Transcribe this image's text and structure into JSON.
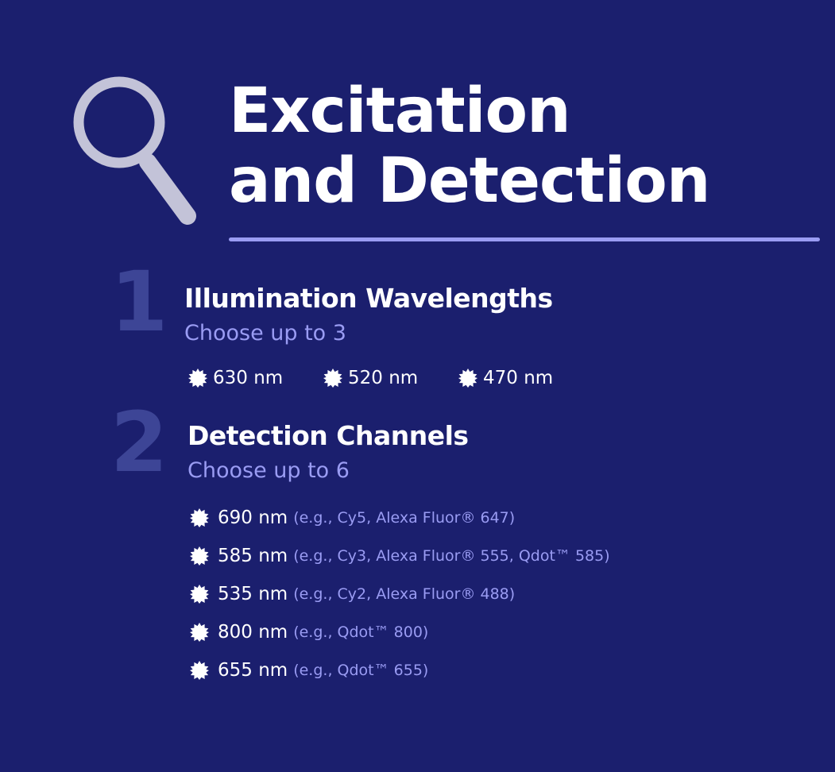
{
  "colors": {
    "background": "#1b1f6e",
    "accent": "#9a9cf3",
    "step_number": "#3d4596",
    "text": "#ffffff",
    "magnifier": "#c3c3d8"
  },
  "header": {
    "icon": "magnifying-glass-icon",
    "title_line1": "Excitation",
    "title_line2": "and Detection"
  },
  "illumination": {
    "number": "1",
    "title": "Illumination Wavelengths",
    "subtitle": "Choose up to 3",
    "icon": "sun-icon",
    "items": [
      "630 nm",
      "520 nm",
      "470 nm"
    ]
  },
  "detection": {
    "number": "2",
    "title": "Detection Channels",
    "subtitle": "Choose up to 6",
    "icon": "sun-icon",
    "channels": [
      {
        "wavelength": "690 nm",
        "examples": "(e.g., Cy5, Alexa Fluor® 647)"
      },
      {
        "wavelength": "585 nm",
        "examples": "(e.g., Cy3, Alexa Fluor® 555, Qdot™ 585)"
      },
      {
        "wavelength": "535 nm",
        "examples": "(e.g., Cy2, Alexa Fluor® 488)"
      },
      {
        "wavelength": "800 nm",
        "examples": "(e.g., Qdot™ 800)"
      },
      {
        "wavelength": "655 nm",
        "examples": "(e.g., Qdot™ 655)"
      }
    ]
  }
}
